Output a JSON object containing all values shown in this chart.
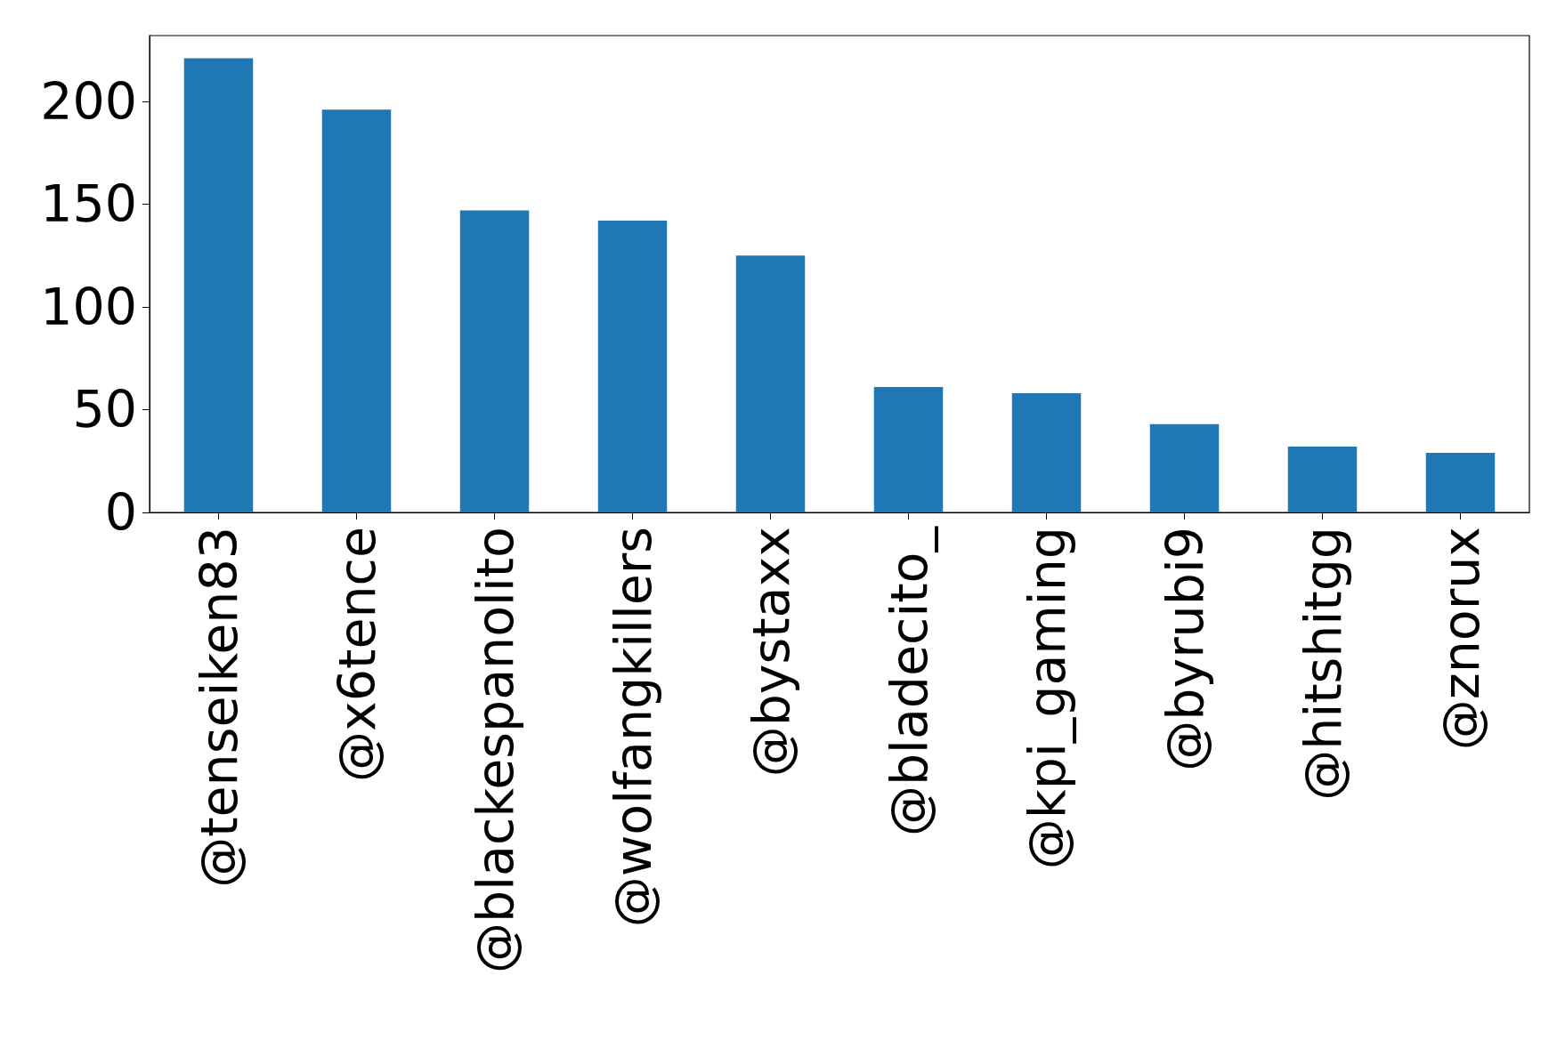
{
  "chart_data": {
    "type": "bar",
    "categories": [
      "@tenseiken83",
      "@x6tence",
      "@blackespanolito",
      "@wolfangkillers",
      "@bystaxx",
      "@bladecito_",
      "@kpi_gaming",
      "@byrubi9",
      "@hitshitgg",
      "@znorux"
    ],
    "values": [
      221,
      196,
      147,
      142,
      125,
      61,
      58,
      43,
      32,
      29
    ],
    "color": "#1f77b4",
    "ylim": [
      0,
      232
    ],
    "yticks": [
      0,
      50,
      100,
      150,
      200
    ],
    "grid": false
  }
}
